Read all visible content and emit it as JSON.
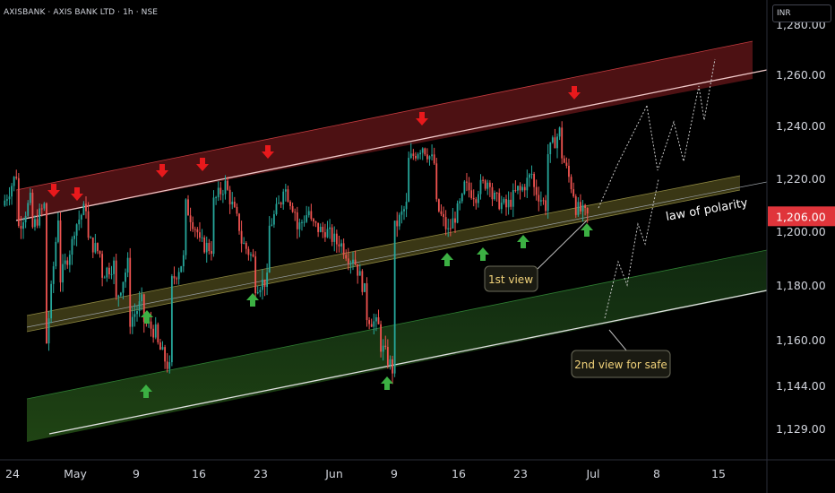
{
  "header": {
    "title": "AXISBANK · AXIS BANK LTD · 1h · NSE"
  },
  "currency": "INR",
  "last_price": {
    "value": 1206,
    "label": "1,206.00",
    "color": "#e0353b"
  },
  "colors": {
    "up": "#26a69a",
    "down": "#ef5350",
    "arrow_up": "#3cb043",
    "arrow_down": "#e8191c",
    "upper_band": "#7a1a1c",
    "middle_band": "#4d4a1c",
    "lower_band": "#1c3d1c"
  },
  "annotations": {
    "law_of_polarity": "law of polarity",
    "first_view": "1st view",
    "second_view": "2nd view for safe"
  },
  "chart_data": {
    "type": "candlestick",
    "title": "AXISBANK · AXIS BANK LTD · 1h · NSE",
    "y_axis": {
      "scale": "log",
      "ticks": [
        1129,
        1144,
        1160,
        1180,
        1200,
        1220,
        1240,
        1260,
        1280
      ],
      "tick_labels": [
        "1,129.00",
        "1,144.00",
        "1,160.00",
        "1,180.00",
        "1,200.00",
        "1,220.00",
        "1,240.00",
        "1,260.00",
        "1,280.00"
      ]
    },
    "x_axis": {
      "tick_labels": [
        "24",
        "May",
        "9",
        "16",
        "23",
        "Jun",
        "9",
        "16",
        "23",
        "Jul",
        "8",
        "15"
      ]
    },
    "price_path": [
      [
        1210,
        1222
      ],
      [
        1200,
        1212
      ],
      [
        1200,
        1210
      ],
      [
        1150,
        1206
      ],
      [
        1180,
        1196
      ],
      [
        1200,
        1210
      ],
      [
        1198,
        1192
      ],
      [
        1184,
        1188
      ],
      [
        1172,
        1188
      ],
      [
        1166,
        1174
      ],
      [
        1168,
        1163
      ],
      [
        1160,
        1150
      ],
      [
        1180,
        1190
      ],
      [
        1212,
        1200
      ],
      [
        1196,
        1194
      ],
      [
        1210,
        1218
      ],
      [
        1218,
        1202
      ],
      [
        1198,
        1190
      ],
      [
        1180,
        1182
      ],
      [
        1200,
        1212
      ],
      [
        1220,
        1208
      ],
      [
        1200,
        1208
      ],
      [
        1204,
        1200
      ],
      [
        1202,
        1196
      ],
      [
        1198,
        1190
      ],
      [
        1194,
        1178
      ],
      [
        1170,
        1165
      ],
      [
        1160,
        1150
      ],
      [
        1200,
        1210
      ],
      [
        1226,
        1232
      ],
      [
        1234,
        1226
      ],
      [
        1212,
        1200
      ],
      [
        1200,
        1212
      ],
      [
        1218,
        1214
      ],
      [
        1216,
        1220
      ],
      [
        1214,
        1210
      ],
      [
        1208,
        1216
      ],
      [
        1214,
        1222
      ],
      [
        1218,
        1210
      ],
      [
        1228,
        1238
      ],
      [
        1232,
        1215
      ],
      [
        1210,
        1206
      ]
    ],
    "arrows": {
      "down_dates": [
        "Apr 29",
        "Apr 30",
        "May 10",
        "May 15",
        "May 20",
        "Jun 11",
        "Jun 27"
      ],
      "up_dates": [
        "May 7",
        "May 9",
        "May 20",
        "Jun 7",
        "Jun 14",
        "Jun 18",
        "Jun 21",
        "Jun 28"
      ]
    },
    "channels": {
      "upper_band": {
        "color": "#7a1a1c"
      },
      "middle_band": {
        "color": "#4d4a1c"
      },
      "lower_band": {
        "color": "#1c3d1c"
      }
    },
    "projection": {
      "style": "dashed",
      "color": "#d1d4dc"
    }
  }
}
